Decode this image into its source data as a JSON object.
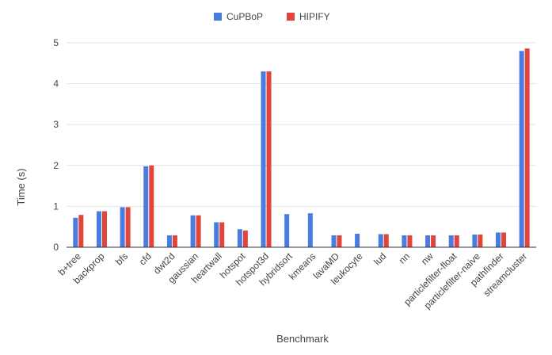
{
  "chart_data": {
    "type": "bar",
    "title": "",
    "xlabel": "Benchmark",
    "ylabel": "Time (s)",
    "ylim": [
      0,
      5
    ],
    "yticks": [
      "0",
      "1",
      "2",
      "3",
      "4",
      "5"
    ],
    "grid": true,
    "legend_position": "top-center",
    "categories": [
      "b+tree",
      "backprop",
      "bfs",
      "cfd",
      "dwt2d",
      "gaussian",
      "heartwall",
      "hotspot",
      "hotspot3d",
      "hybridsort",
      "kmeans",
      "lavaMD",
      "leukocyte",
      "lud",
      "nn",
      "nw",
      "particlefilter-float",
      "particlefilter-naive",
      "pathfinder",
      "streamcluster"
    ],
    "series": [
      {
        "name": "CuPBoP",
        "color": "#4a7bde",
        "values": [
          0.72,
          0.88,
          0.98,
          1.98,
          0.29,
          0.78,
          0.61,
          0.44,
          4.3,
          0.81,
          0.83,
          0.29,
          0.33,
          0.32,
          0.29,
          0.29,
          0.29,
          0.31,
          0.36,
          4.8
        ]
      },
      {
        "name": "HIPIFY",
        "color": "#e2453c",
        "values": [
          0.79,
          0.88,
          0.98,
          2.0,
          0.29,
          0.78,
          0.61,
          0.41,
          4.3,
          null,
          null,
          0.29,
          null,
          0.32,
          0.29,
          0.29,
          0.29,
          0.31,
          0.36,
          4.86
        ]
      }
    ]
  }
}
